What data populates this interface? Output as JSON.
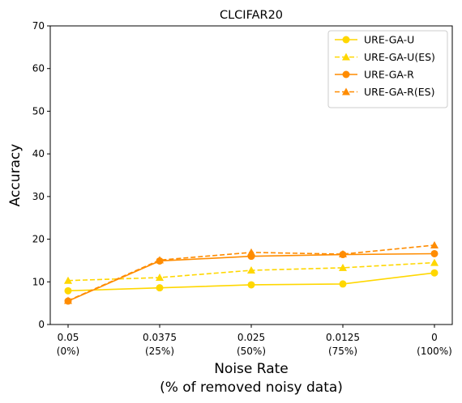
{
  "chart_data": {
    "type": "line",
    "title": "CLCIFAR20",
    "ylabel": "Accuracy",
    "xlabel_lines": [
      "Noise Rate",
      "(% of removed noisy data)"
    ],
    "categories": [
      [
        "0.05",
        "(0%)"
      ],
      [
        "0.0375",
        "(25%)"
      ],
      [
        "0.025",
        "(50%)"
      ],
      [
        "0.0125",
        "(75%)"
      ],
      [
        "0",
        "(100%)"
      ]
    ],
    "ylim": [
      0,
      70
    ],
    "yticks": [
      0,
      10,
      20,
      30,
      40,
      50,
      60,
      70
    ],
    "grid": false,
    "legend_position": "top-right",
    "series": [
      {
        "name": "URE-GA-U",
        "values": [
          7.9,
          8.6,
          9.3,
          9.5,
          12.1
        ],
        "color": "#FFD700",
        "dash": false,
        "marker": "circle"
      },
      {
        "name": "URE-GA-U(ES)",
        "values": [
          10.3,
          11.0,
          12.7,
          13.3,
          14.5
        ],
        "color": "#FFD700",
        "dash": true,
        "marker": "triangle"
      },
      {
        "name": "URE-GA-R",
        "values": [
          5.5,
          14.9,
          16.0,
          16.4,
          16.6
        ],
        "color": "#FF8C00",
        "dash": false,
        "marker": "circle"
      },
      {
        "name": "URE-GA-R(ES)",
        "values": [
          5.6,
          15.1,
          16.9,
          16.5,
          18.6
        ],
        "color": "#FF8C00",
        "dash": true,
        "marker": "triangle"
      }
    ]
  }
}
